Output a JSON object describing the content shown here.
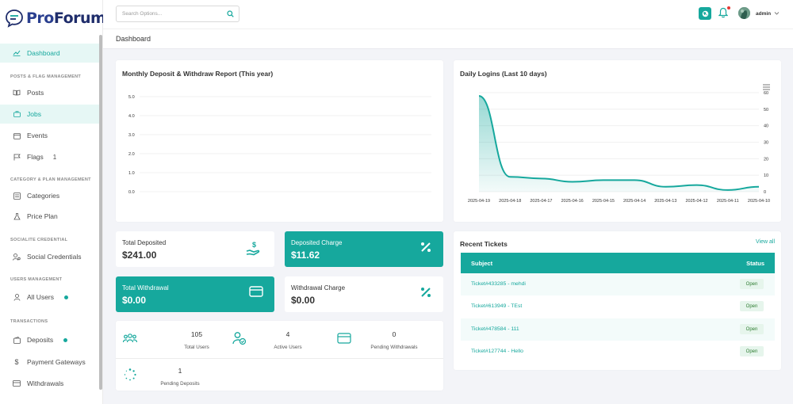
{
  "app": {
    "logo_pro": "Pro",
    "logo_forum": "Forum"
  },
  "topbar": {
    "search_placeholder": "Search Options...",
    "user": "admin"
  },
  "breadcrumb": "Dashboard",
  "sidebar": {
    "sections": {
      "posts_flag": "POSTS & FLAG MANAGEMENT",
      "category_plan": "CATEGORY & PLAN MANAGEMENT",
      "socialite": "SOCIALITE CREDENTIAL",
      "users": "USERS MANAGEMENT",
      "transactions": "TRANSACTIONS"
    },
    "items": {
      "dashboard": "Dashboard",
      "posts": "Posts",
      "jobs": "Jobs",
      "events": "Events",
      "flags": "Flags",
      "flags_count": "1",
      "categories": "Categories",
      "price_plan": "Price Plan",
      "social_credentials": "Social Credentials",
      "all_users": "All Users",
      "deposits": "Deposits",
      "payment_gateways": "Payment Gateways",
      "withdrawals": "Withdrawals"
    }
  },
  "deposit_report": {
    "title": "Monthly Deposit & Withdraw Report (This year)",
    "y_ticks": [
      "0.0",
      "1.0",
      "2.0",
      "3.0",
      "4.0",
      "5.0"
    ]
  },
  "daily_logins": {
    "title": "Daily Logins (Last 10 days)"
  },
  "chart_data": {
    "type": "area",
    "title": "Daily Logins (Last 10 days)",
    "x": [
      "2025-04-19",
      "2025-04-18",
      "2025-04-17",
      "2025-04-16",
      "2025-04-15",
      "2025-04-14",
      "2025-04-13",
      "2025-04-12",
      "2025-04-11",
      "2025-04-10"
    ],
    "series": [
      {
        "values": [
          58,
          9,
          8,
          6,
          7,
          7,
          3,
          4,
          1,
          3
        ]
      }
    ],
    "y_ticks": [
      "0",
      "10",
      "20",
      "30",
      "40",
      "50",
      "60"
    ],
    "ylim": [
      0,
      60
    ],
    "color": "#16a89d",
    "grid": true
  },
  "stats": {
    "total_deposited": {
      "label": "Total Deposited",
      "value": "$241.00"
    },
    "deposited_charge": {
      "label": "Deposited Charge",
      "value": "$11.62"
    },
    "total_withdrawal": {
      "label": "Total Withdrawal",
      "value": "$0.00"
    },
    "withdrawal_charge": {
      "label": "Withdrawal Charge",
      "value": "$0.00"
    }
  },
  "mini_stats": {
    "total_users": {
      "value": "105",
      "label": "Total Users"
    },
    "active_users": {
      "value": "4",
      "label": "Active Users"
    },
    "pending_withdrawals": {
      "value": "0",
      "label": "Pending Withdrawals"
    },
    "pending_deposits": {
      "value": "1",
      "label": "Pending Deposits"
    }
  },
  "tickets": {
    "title": "Recent Tickets",
    "view_all": "View all",
    "col_subject": "Subject",
    "col_status": "Status",
    "rows": [
      {
        "subject": "Ticket#433285 - mehdi",
        "status": "Open"
      },
      {
        "subject": "Ticket#613949 - TEst",
        "status": "Open"
      },
      {
        "subject": "Ticket#478584 - 111",
        "status": "Open"
      },
      {
        "subject": "Ticket#127744 - Hello",
        "status": "Open"
      }
    ]
  },
  "colors": {
    "accent": "#16a89d",
    "brand": "#2a3f8f"
  }
}
